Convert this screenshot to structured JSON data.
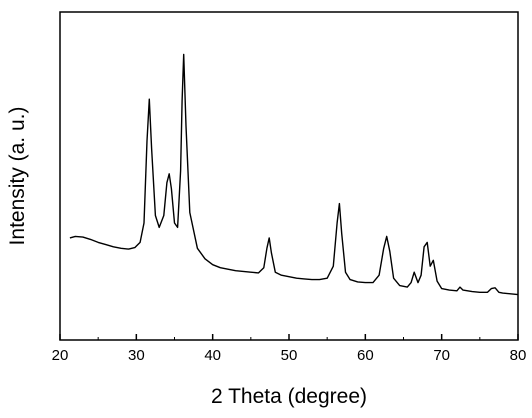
{
  "chart_data": {
    "type": "line",
    "xlabel": "2 Theta (degree)",
    "ylabel": "Intensity (a. u.)",
    "xlim": [
      20,
      80
    ],
    "y_ticks_shown": false,
    "grid": false,
    "legend": "none",
    "x_ticks": [
      "20",
      "30",
      "40",
      "50",
      "60",
      "70",
      "80"
    ],
    "line_color": "#000000",
    "series": [
      {
        "x": [
          21.3,
          22.0,
          23.0,
          24.0,
          25.0,
          26.0,
          27.0,
          28.0,
          29.0,
          29.8,
          30.5,
          31.0,
          31.4,
          31.7,
          32.0,
          32.5,
          33.0,
          33.6,
          34.0,
          34.3,
          34.6,
          35.0,
          35.4,
          35.8,
          36.0,
          36.2,
          36.5,
          37.0,
          38.0,
          39.0,
          40.0,
          41.0,
          42.0,
          43.0,
          44.0,
          45.0,
          46.0,
          46.7,
          47.1,
          47.4,
          47.7,
          48.2,
          49.0,
          50.0,
          51.0,
          52.0,
          53.0,
          54.0,
          55.0,
          55.8,
          56.3,
          56.6,
          56.9,
          57.4,
          58.0,
          59.0,
          60.0,
          61.0,
          61.8,
          62.4,
          62.8,
          63.2,
          63.7,
          64.5,
          65.5,
          66.0,
          66.4,
          66.9,
          67.3,
          67.7,
          68.1,
          68.5,
          68.9,
          69.4,
          70.0,
          71.0,
          72.0,
          72.4,
          72.8,
          74.0,
          75.0,
          76.0,
          76.5,
          77.0,
          77.5,
          78.0,
          79.0,
          80.0
        ],
        "values": [
          0.45,
          0.46,
          0.455,
          0.44,
          0.42,
          0.405,
          0.39,
          0.38,
          0.375,
          0.385,
          0.42,
          0.55,
          1.1,
          1.38,
          1.05,
          0.6,
          0.52,
          0.6,
          0.82,
          0.88,
          0.78,
          0.55,
          0.52,
          0.9,
          1.37,
          1.68,
          1.2,
          0.62,
          0.38,
          0.31,
          0.27,
          0.25,
          0.24,
          0.23,
          0.225,
          0.22,
          0.215,
          0.25,
          0.38,
          0.45,
          0.35,
          0.22,
          0.2,
          0.19,
          0.18,
          0.175,
          0.17,
          0.17,
          0.18,
          0.26,
          0.55,
          0.68,
          0.48,
          0.22,
          0.17,
          0.155,
          0.15,
          0.15,
          0.2,
          0.38,
          0.46,
          0.36,
          0.18,
          0.13,
          0.12,
          0.15,
          0.22,
          0.15,
          0.2,
          0.39,
          0.42,
          0.26,
          0.3,
          0.16,
          0.11,
          0.1,
          0.095,
          0.12,
          0.1,
          0.09,
          0.085,
          0.085,
          0.11,
          0.115,
          0.085,
          0.08,
          0.075,
          0.07
        ]
      }
    ]
  }
}
